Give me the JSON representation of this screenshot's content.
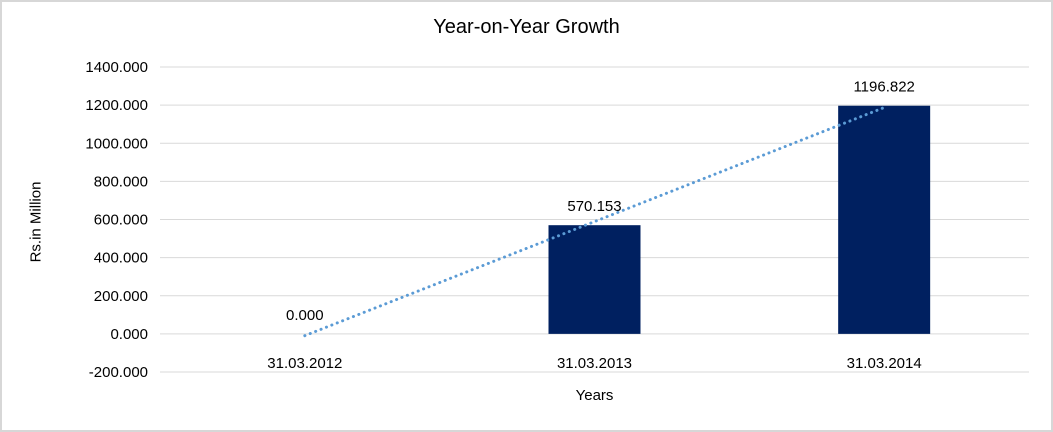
{
  "chart_data": {
    "type": "bar",
    "title": "Year-on-Year Growth",
    "xlabel": "Years",
    "ylabel": "Rs.in Million",
    "categories": [
      "31.03.2012",
      "31.03.2013",
      "31.03.2014"
    ],
    "values": [
      0,
      570.153,
      1196.822
    ],
    "data_labels": [
      "0.000",
      "570.153",
      "1196.822"
    ],
    "ylim": [
      -200,
      1400
    ],
    "ytick_step": 200,
    "ytick_labels": [
      "-200.000",
      "0.000",
      "200.000",
      "400.000",
      "600.000",
      "800.000",
      "1000.000",
      "1200.000",
      "1400.000"
    ],
    "grid": "horizontal",
    "grid_color": "#D9D9D9",
    "legend": "none",
    "bar_color": "#002060",
    "trendline": {
      "type": "linear",
      "style": "dotted",
      "color": "#5B9BD5",
      "start_value": -9.4,
      "end_value": 1187.4
    }
  }
}
